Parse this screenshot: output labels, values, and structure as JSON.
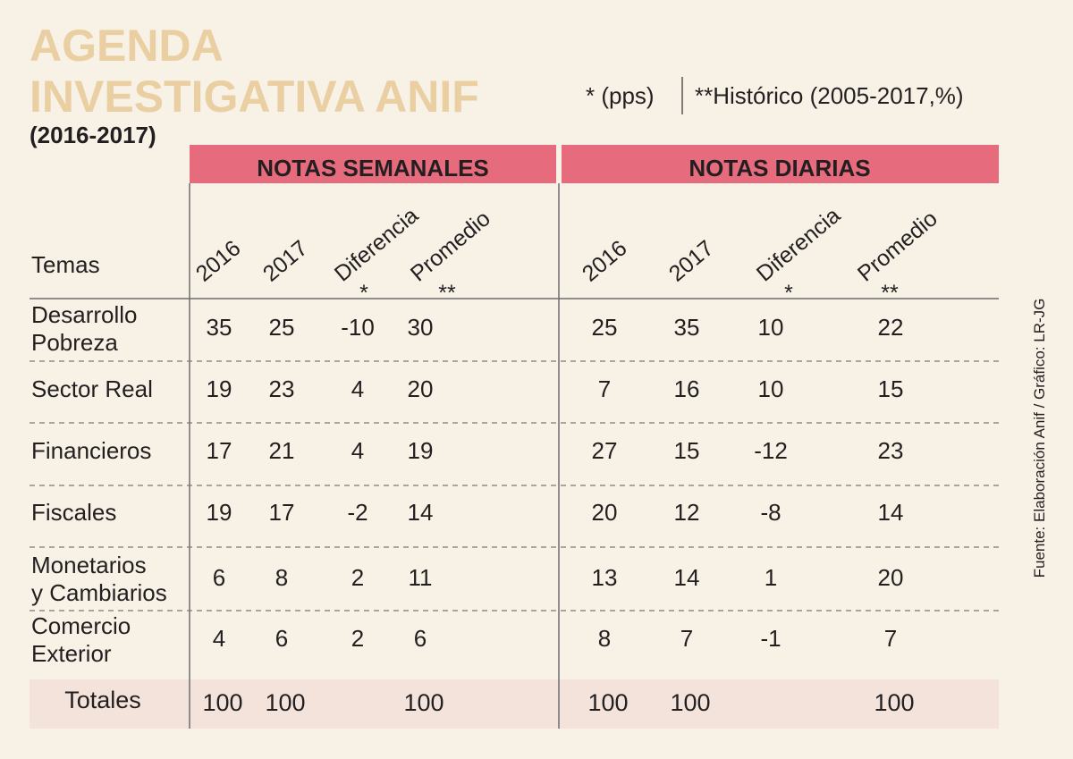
{
  "header": {
    "title": [
      "AGENDA",
      "INVESTIGATIVA ANIF"
    ],
    "period": "(2016-2017)",
    "notes": [
      "* (pps)",
      "**Histórico (2005-2017,%)"
    ]
  },
  "table": {
    "row_header": "Temas",
    "groups": [
      {
        "name": "NOTAS SEMANALES",
        "columns": [
          {
            "label": "2016"
          },
          {
            "label": "2017"
          },
          {
            "label": "Diferencia",
            "mark": "*"
          },
          {
            "label": "Promedio",
            "mark": "**"
          }
        ]
      },
      {
        "name": "NOTAS DIARIAS",
        "columns": [
          {
            "label": "2016"
          },
          {
            "label": "2017"
          },
          {
            "label": "Diferencia",
            "mark": "*"
          },
          {
            "label": "Promedio",
            "mark": "**"
          }
        ]
      }
    ],
    "rows": [
      {
        "label": [
          "Desarrollo",
          "Pobreza"
        ],
        "values": [
          [
            35,
            25,
            -10,
            30
          ],
          [
            25,
            35,
            10,
            22
          ]
        ]
      },
      {
        "label": [
          "Sector Real"
        ],
        "values": [
          [
            19,
            23,
            4,
            20
          ],
          [
            7,
            16,
            10,
            15
          ]
        ]
      },
      {
        "label": [
          "Financieros"
        ],
        "values": [
          [
            17,
            21,
            4,
            19
          ],
          [
            27,
            15,
            -12,
            23
          ]
        ]
      },
      {
        "label": [
          "Fiscales"
        ],
        "values": [
          [
            19,
            17,
            -2,
            14
          ],
          [
            20,
            12,
            -8,
            14
          ]
        ]
      },
      {
        "label": [
          "Monetarios",
          "y Cambiarios"
        ],
        "values": [
          [
            6,
            8,
            2,
            11
          ],
          [
            13,
            14,
            1,
            20
          ]
        ]
      },
      {
        "label": [
          "Comercio",
          "Exterior"
        ],
        "values": [
          [
            4,
            6,
            2,
            6
          ],
          [
            8,
            7,
            -1,
            7
          ]
        ]
      }
    ],
    "totals": {
      "label": "Totales",
      "values": [
        [
          100,
          100,
          100
        ],
        [
          100,
          100,
          100
        ]
      ]
    }
  },
  "footer": {
    "source": "Fuente: Elaboración Anif / Gráfico: LR-JG"
  }
}
